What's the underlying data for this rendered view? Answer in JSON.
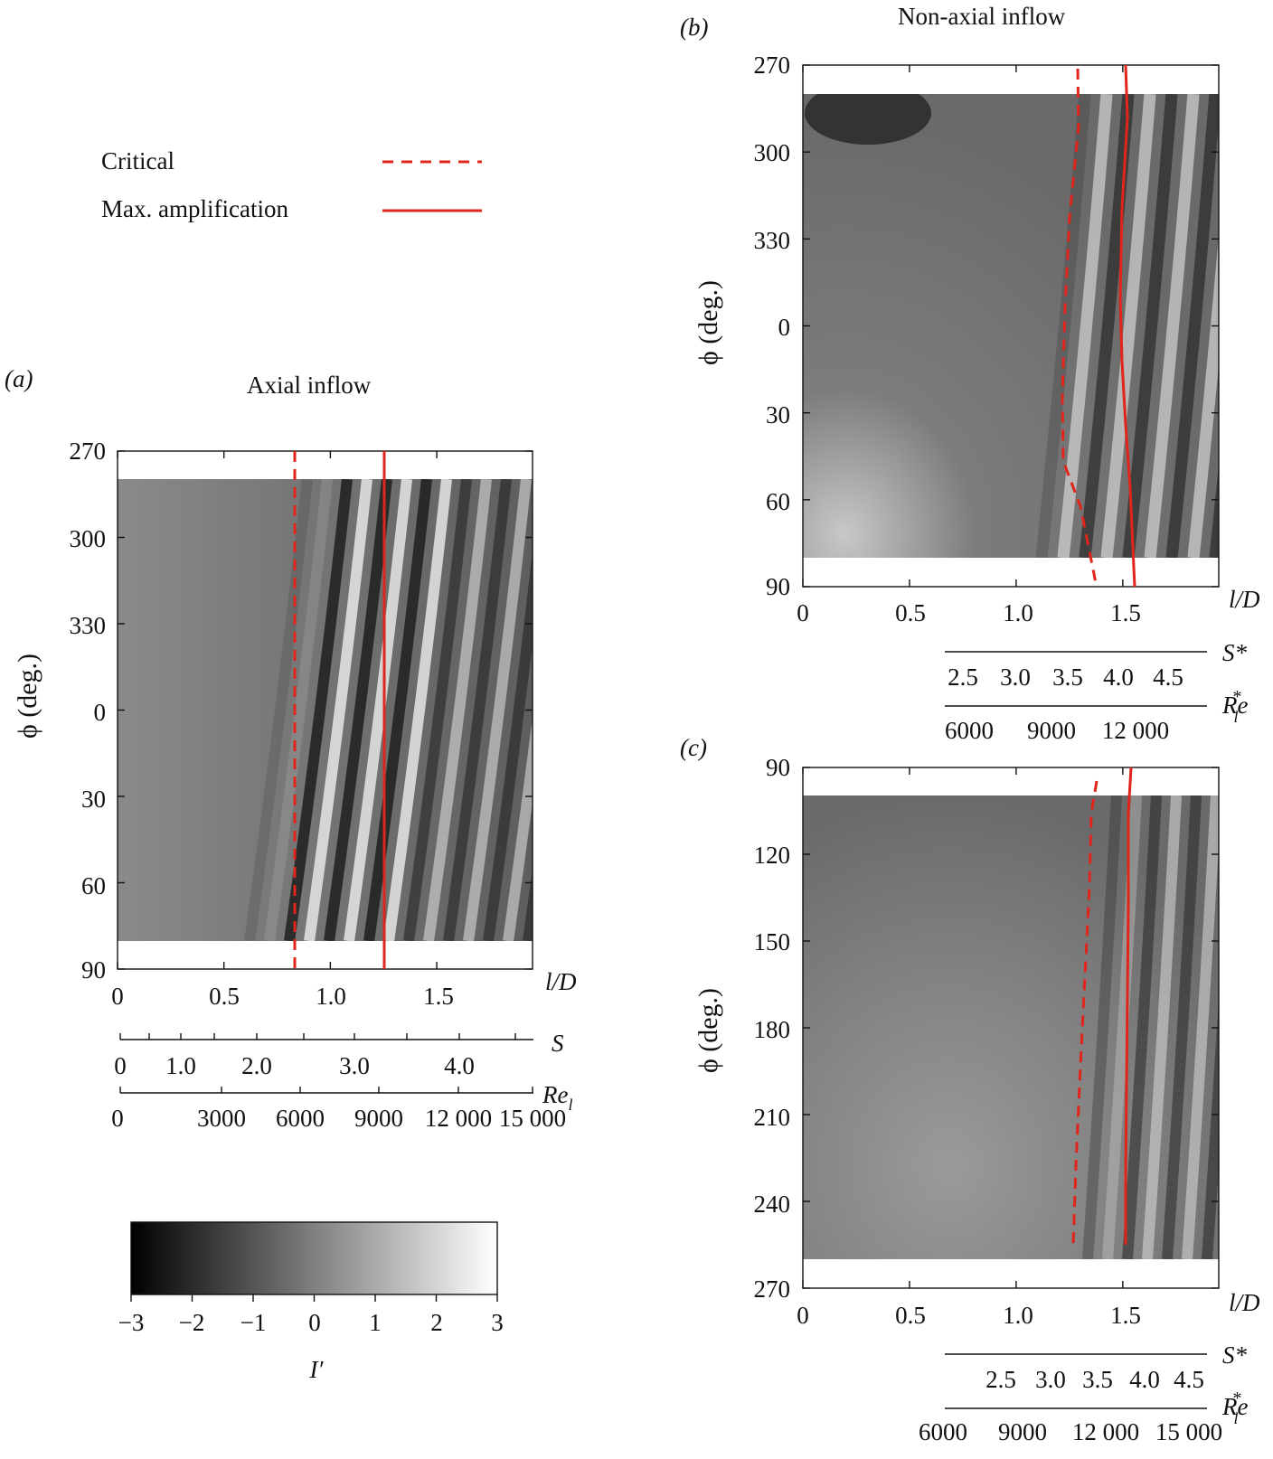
{
  "legend": {
    "critical_label": "Critical",
    "max_label": "Max. amplification",
    "line_color": "#e1251b"
  },
  "colorbar": {
    "ticks": [
      "−3",
      "−2",
      "−1",
      "0",
      "1",
      "2",
      "3"
    ],
    "label": "I′",
    "range": [
      -3,
      3
    ]
  },
  "panels": {
    "a": {
      "letter": "(a)",
      "title": "Axial inflow",
      "ylabel": "ϕ (deg.)",
      "xlabel": "l/D",
      "yticks": [
        "270",
        "300",
        "330",
        "0",
        "30",
        "60",
        "90"
      ],
      "xticks": [
        "0",
        "0.5",
        "1.0",
        "1.5"
      ],
      "s_label": "S",
      "s_ticks": [
        "0",
        "1.0",
        "2.0",
        "3.0",
        "4.0"
      ],
      "re_label": "Re",
      "re_sub": "l",
      "re_ticks": [
        "0",
        "3000",
        "6000",
        "9000",
        "12 000",
        "15 000"
      ]
    },
    "b": {
      "letter": "(b)",
      "title": "Non-axial inflow",
      "ylabel": "ϕ (deg.)",
      "xlabel": "l/D",
      "yticks": [
        "270",
        "300",
        "330",
        "0",
        "30",
        "60",
        "90"
      ],
      "xticks": [
        "0",
        "0.5",
        "1.0",
        "1.5"
      ],
      "s_label": "S*",
      "s_ticks": [
        "2.5",
        "3.0",
        "3.5",
        "4.0",
        "4.5"
      ],
      "re_label": "Re",
      "re_sub": "l",
      "re_sup": "*",
      "re_ticks": [
        "6000",
        "9000",
        "12 000"
      ]
    },
    "c": {
      "letter": "(c)",
      "ylabel": "ϕ (deg.)",
      "xlabel": "l/D",
      "yticks": [
        "90",
        "120",
        "150",
        "180",
        "210",
        "240",
        "270"
      ],
      "xticks": [
        "0",
        "0.5",
        "1.0",
        "1.5"
      ],
      "s_label": "S*",
      "s_ticks": [
        "2.5",
        "3.0",
        "3.5",
        "4.0",
        "4.5"
      ],
      "re_label": "Re",
      "re_sub": "l",
      "re_sup": "*",
      "re_ticks": [
        "6000",
        "9000",
        "12 000",
        "15 000"
      ]
    }
  }
}
